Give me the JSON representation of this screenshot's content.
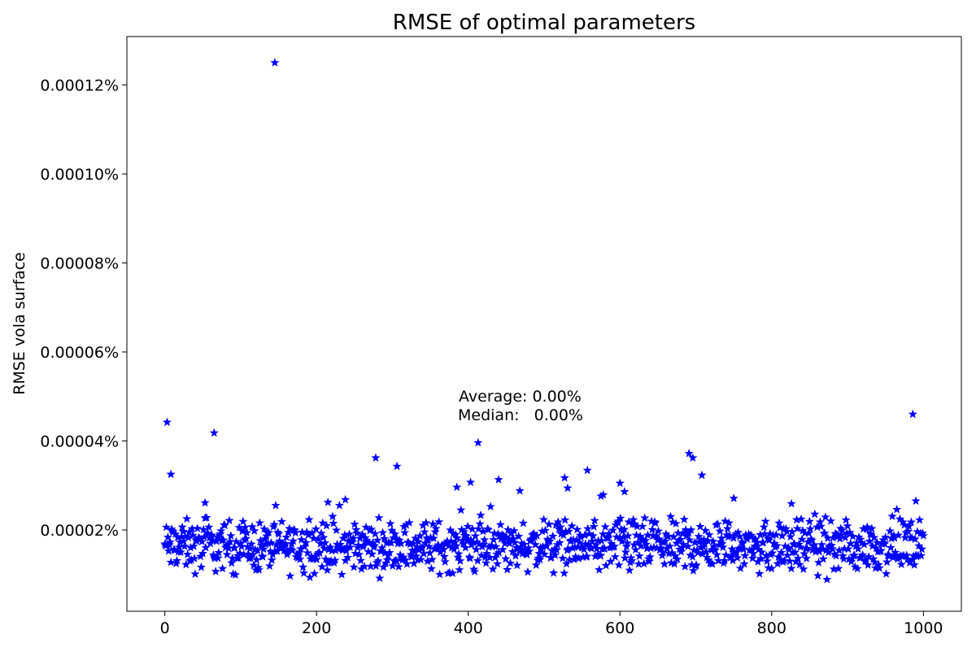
{
  "chart_data": {
    "type": "scatter",
    "title": "RMSE of optimal parameters",
    "xlabel": "",
    "ylabel": "RMSE vola surface",
    "xlim": [
      -50,
      1050
    ],
    "ylim": [
      0.0,
      1.31e-05
    ],
    "x_ticks": [
      0,
      200,
      400,
      600,
      800,
      1000
    ],
    "x_tick_labels": [
      "0",
      "200",
      "400",
      "600",
      "800",
      "1000"
    ],
    "y_ticks": [
      2e-05,
      4e-05,
      6e-05,
      8e-05,
      0.0001,
      0.00012
    ],
    "y_tick_labels": [
      "0.00002%",
      "0.00004%",
      "0.00006%",
      "0.00008%",
      "0.00010%",
      "0.00012%"
    ],
    "y_tick_unit_note": "tick values in percent units",
    "marker": "star",
    "marker_color": "#0000ff",
    "grid": false,
    "annotation": {
      "line1": "Average: 0.00%",
      "line2": "Median:   0.00%"
    },
    "series": [
      {
        "points": [
          [
            145,
            0.000125
          ],
          [
            3,
            4.42e-05
          ],
          [
            8,
            3.25e-05
          ],
          [
            65,
            4.18e-05
          ],
          [
            278,
            3.62e-05
          ],
          [
            306,
            3.43e-05
          ],
          [
            413,
            3.96e-05
          ],
          [
            527,
            3.17e-05
          ],
          [
            557,
            3.34e-05
          ],
          [
            691,
            3.72e-05
          ],
          [
            696,
            3.62e-05
          ],
          [
            708,
            3.23e-05
          ],
          [
            986,
            4.6e-05
          ],
          [
            385,
            2.96e-05
          ],
          [
            403,
            3.07e-05
          ],
          [
            440,
            3.13e-05
          ],
          [
            468,
            2.88e-05
          ],
          [
            531,
            2.94e-05
          ],
          [
            600,
            3.05e-05
          ],
          [
            606,
            2.86e-05
          ],
          [
            575,
            2.76e-05
          ],
          [
            578,
            2.79e-05
          ],
          [
            750,
            2.71e-05
          ],
          [
            238,
            2.68e-05
          ],
          [
            990,
            2.65e-05
          ],
          [
            215,
            2.62e-05
          ],
          [
            826,
            2.59e-05
          ],
          [
            53,
            2.61e-05
          ]
        ]
      }
    ],
    "bulk": {
      "x_range": [
        0,
        1000
      ],
      "count": 1000,
      "y_min": 8e-06,
      "y_max": 2.55e-05,
      "y_center": 1.45e-05
    }
  }
}
